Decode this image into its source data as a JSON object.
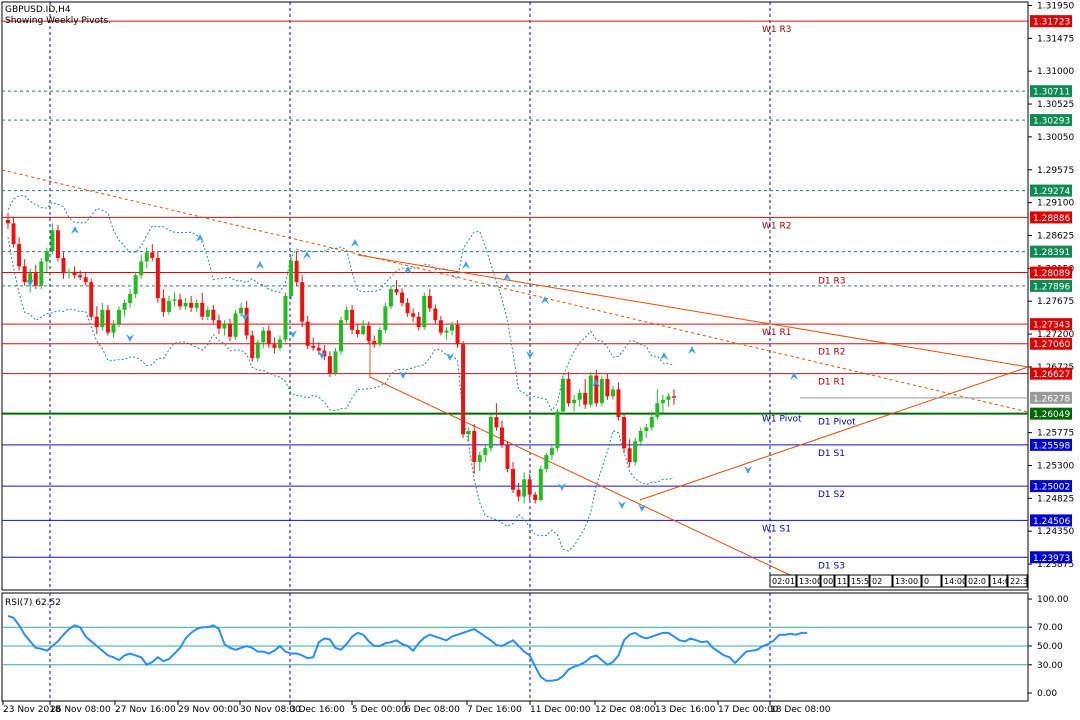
{
  "window": {
    "symbol_title": "GBPUSD.ID,H4",
    "subtitle": "Showing Weekly Pivots."
  },
  "colors": {
    "bull": "#22bb22",
    "bear": "#ee1111",
    "rsi": "#2a8ef0",
    "pivot_red": "#d01010",
    "pivot_blue": "#1010c0",
    "pivot_green": "#006600",
    "envelope": "#2a8a8a",
    "trend": "#e05010",
    "grid": "#0000dd",
    "fractal": "#3aa0e8"
  },
  "price_axis": {
    "ticks": [
      "1.31950",
      "1.31475",
      "1.31000",
      "1.30525",
      "1.30050",
      "1.29575",
      "1.29100",
      "1.28625",
      "1.28150",
      "1.27675",
      "1.27200",
      "1.26725",
      "1.25775",
      "1.25300",
      "1.24825",
      "1.24350",
      "1.23875"
    ],
    "current_price": "1.26278"
  },
  "levels": [
    {
      "price": 1.31723,
      "label": "1.31723",
      "name": "W1 R3",
      "style": "red-solid",
      "tag": "red"
    },
    {
      "price": 1.30711,
      "label": "1.30711",
      "name": "",
      "style": "teal-dash",
      "tag": "green"
    },
    {
      "price": 1.30293,
      "label": "1.30293",
      "name": "",
      "style": "teal-dash",
      "tag": "green"
    },
    {
      "price": 1.29274,
      "label": "1.29274",
      "name": "",
      "style": "teal-dash",
      "tag": "green"
    },
    {
      "price": 1.28886,
      "label": "1.28886",
      "name": "W1 R2",
      "style": "red-solid",
      "tag": "red"
    },
    {
      "price": 1.28391,
      "label": "1.28391",
      "name": "",
      "style": "teal-dash",
      "tag": "green"
    },
    {
      "price": 1.28089,
      "label": "1.28089",
      "name": "D1 R3",
      "style": "red-solid",
      "tag": "red"
    },
    {
      "price": 1.27896,
      "label": "1.27896",
      "name": "",
      "style": "teal-dash",
      "tag": "green"
    },
    {
      "price": 1.27343,
      "label": "1.27343",
      "name": "W1 R1",
      "style": "red-solid",
      "tag": "red"
    },
    {
      "price": 1.2706,
      "label": "1.27060",
      "name": "D1 R2",
      "style": "red-solid",
      "tag": "red"
    },
    {
      "price": 1.26627,
      "label": "1.26627",
      "name": "D1 R1",
      "style": "red-solid",
      "tag": "red"
    },
    {
      "price": 1.26049,
      "label": "1.26049",
      "name": "D1 Pivot",
      "style": "green-solid",
      "tag": "darkgreen"
    },
    {
      "price": 1.25598,
      "label": "1.25598",
      "name": "D1 S1",
      "style": "blue-solid",
      "tag": "blue"
    },
    {
      "price": 1.25002,
      "label": "1.25002",
      "name": "D1 S2",
      "style": "blue-solid",
      "tag": "blue"
    },
    {
      "price": 1.24506,
      "label": "1.24506",
      "name": "W1 S1",
      "style": "blue-solid",
      "tag": "blue"
    },
    {
      "price": 1.23973,
      "label": "1.23973",
      "name": "D1 S3",
      "style": "blue-solid",
      "tag": "blue"
    }
  ],
  "w1_pivot_label": "W1 Pivot",
  "time_axis": [
    "23 Nov 2018",
    "26 Nov 08:00",
    "27 Nov 16:00",
    "29 Nov 00:00",
    "30 Nov 08:00",
    "3 Dec 16:00",
    "5 Dec 00:00",
    "6 Dec 08:00",
    "7 Dec 16:00",
    "11 Dec 00:00",
    "12 Dec 08:00",
    "13 Dec 16:00",
    "17 Dec 00:00",
    "18 Dec 08:00"
  ],
  "time_boxes": [
    "02:01",
    "13:00",
    "00",
    "11",
    "15:5",
    "02",
    "13:00",
    "0",
    "14:00",
    "02:0",
    "14:0",
    "22:3"
  ],
  "rsi": {
    "label": "RSI(7) 62.52",
    "ticks": [
      "100.00",
      "70.00",
      "50.00",
      "30.00",
      "0.00"
    ],
    "values": [
      82,
      80,
      72,
      62,
      55,
      48,
      47,
      45,
      50,
      55,
      62,
      68,
      72,
      70,
      60,
      55,
      50,
      45,
      40,
      38,
      35,
      40,
      42,
      40,
      38,
      30,
      33,
      38,
      34,
      36,
      42,
      48,
      58,
      64,
      68,
      70,
      70,
      72,
      68,
      52,
      48,
      46,
      48,
      50,
      48,
      44,
      44,
      42,
      45,
      50,
      44,
      42,
      42,
      40,
      37,
      38,
      54,
      58,
      57,
      48,
      46,
      52,
      60,
      64,
      62,
      55,
      50,
      50,
      53,
      54,
      56,
      52,
      50,
      45,
      53,
      59,
      62,
      60,
      58,
      56,
      60,
      62,
      64,
      66,
      68,
      64,
      60,
      56,
      51,
      50,
      53,
      56,
      50,
      44,
      40,
      28,
      17,
      13,
      13,
      14,
      18,
      25,
      28,
      30,
      33,
      38,
      40,
      35,
      30,
      33,
      40,
      56,
      62,
      64,
      60,
      58,
      60,
      62,
      64,
      64,
      60,
      56,
      55,
      58,
      56,
      54,
      55,
      48,
      44,
      40,
      38,
      32,
      38,
      44,
      45,
      46,
      50,
      52,
      56,
      62,
      62,
      63,
      62,
      64,
      64
    ]
  },
  "candles": [
    [
      1.2885,
      1.2895,
      1.2872,
      1.288
    ],
    [
      1.288,
      1.289,
      1.2845,
      1.285
    ],
    [
      1.285,
      1.286,
      1.2812,
      1.2818
    ],
    [
      1.2818,
      1.2828,
      1.279,
      1.2795
    ],
    [
      1.2795,
      1.2815,
      1.278,
      1.2808
    ],
    [
      1.2808,
      1.282,
      1.2785,
      1.279
    ],
    [
      1.279,
      1.283,
      1.2785,
      1.2825
    ],
    [
      1.2825,
      1.2845,
      1.281,
      1.284
    ],
    [
      1.284,
      1.288,
      1.2835,
      1.287
    ],
    [
      1.287,
      1.2878,
      1.2825,
      1.283
    ],
    [
      1.283,
      1.2838,
      1.28,
      1.2808
    ],
    [
      1.2808,
      1.2815,
      1.28,
      1.281
    ],
    [
      1.281,
      1.2818,
      1.28,
      1.2805
    ],
    [
      1.2805,
      1.2812,
      1.2798,
      1.2802
    ],
    [
      1.2802,
      1.281,
      1.279,
      1.2795
    ],
    [
      1.2795,
      1.28,
      1.274,
      1.2745
    ],
    [
      1.2745,
      1.276,
      1.272,
      1.273
    ],
    [
      1.273,
      1.2765,
      1.2725,
      1.2755
    ],
    [
      1.2755,
      1.2762,
      1.2718,
      1.2722
    ],
    [
      1.2722,
      1.274,
      1.2715,
      1.2735
    ],
    [
      1.2735,
      1.276,
      1.273,
      1.2755
    ],
    [
      1.2755,
      1.277,
      1.2745,
      1.2765
    ],
    [
      1.2765,
      1.2785,
      1.2758,
      1.2778
    ],
    [
      1.2778,
      1.281,
      1.2772,
      1.2805
    ],
    [
      1.2805,
      1.2835,
      1.28,
      1.2825
    ],
    [
      1.2825,
      1.2845,
      1.2815,
      1.2838
    ],
    [
      1.2838,
      1.285,
      1.2825,
      1.283
    ],
    [
      1.283,
      1.284,
      1.2765,
      1.2772
    ],
    [
      1.2772,
      1.2785,
      1.2745,
      1.2752
    ],
    [
      1.2752,
      1.2775,
      1.2748,
      1.2768
    ],
    [
      1.2768,
      1.278,
      1.276,
      1.277
    ],
    [
      1.277,
      1.2778,
      1.2755,
      1.276
    ],
    [
      1.276,
      1.2772,
      1.2755,
      1.2765
    ],
    [
      1.2765,
      1.2775,
      1.2752,
      1.2758
    ],
    [
      1.2758,
      1.277,
      1.2752,
      1.2765
    ],
    [
      1.2765,
      1.278,
      1.274,
      1.2745
    ],
    [
      1.2745,
      1.276,
      1.274,
      1.2755
    ],
    [
      1.2755,
      1.2762,
      1.2735,
      1.274
    ],
    [
      1.274,
      1.2748,
      1.272,
      1.2728
    ],
    [
      1.2728,
      1.274,
      1.2718,
      1.2735
    ],
    [
      1.2735,
      1.2742,
      1.271,
      1.2716
    ],
    [
      1.2716,
      1.2755,
      1.2712,
      1.275
    ],
    [
      1.275,
      1.2765,
      1.2745,
      1.2758
    ],
    [
      1.2758,
      1.2768,
      1.2712,
      1.2718
    ],
    [
      1.2718,
      1.2725,
      1.268,
      1.2685
    ],
    [
      1.2685,
      1.2712,
      1.268,
      1.2708
    ],
    [
      1.2708,
      1.273,
      1.27,
      1.2725
    ],
    [
      1.2725,
      1.2732,
      1.27,
      1.2705
    ],
    [
      1.2705,
      1.2715,
      1.2692,
      1.27
    ],
    [
      1.27,
      1.2718,
      1.2696,
      1.2712
    ],
    [
      1.2712,
      1.278,
      1.2708,
      1.2775
    ],
    [
      1.2775,
      1.2832,
      1.277,
      1.2826
    ],
    [
      1.2826,
      1.284,
      1.279,
      1.2795
    ],
    [
      1.2795,
      1.2805,
      1.273,
      1.2738
    ],
    [
      1.2738,
      1.2746,
      1.2698,
      1.2703
    ],
    [
      1.2703,
      1.2715,
      1.2696,
      1.27
    ],
    [
      1.27,
      1.2708,
      1.269,
      1.2696
    ],
    [
      1.2696,
      1.2704,
      1.2682,
      1.2688
    ],
    [
      1.2688,
      1.2695,
      1.2658,
      1.2663
    ],
    [
      1.2663,
      1.27,
      1.266,
      1.2695
    ],
    [
      1.2695,
      1.2745,
      1.269,
      1.274
    ],
    [
      1.274,
      1.276,
      1.2736,
      1.2755
    ],
    [
      1.2755,
      1.2762,
      1.272,
      1.2726
    ],
    [
      1.2726,
      1.2735,
      1.2715,
      1.272
    ],
    [
      1.272,
      1.274,
      1.2718,
      1.2732
    ],
    [
      1.2732,
      1.2738,
      1.2705,
      1.271
    ],
    [
      1.271,
      1.2718,
      1.27,
      1.2705
    ],
    [
      1.2705,
      1.273,
      1.2702,
      1.2726
    ],
    [
      1.2726,
      1.2765,
      1.2722,
      1.276
    ],
    [
      1.276,
      1.279,
      1.2756,
      1.2785
    ],
    [
      1.2785,
      1.2798,
      1.2776,
      1.278
    ],
    [
      1.278,
      1.2786,
      1.276,
      1.2765
    ],
    [
      1.2765,
      1.2772,
      1.2745,
      1.275
    ],
    [
      1.275,
      1.2757,
      1.2738,
      1.2745
    ],
    [
      1.2745,
      1.2752,
      1.2725,
      1.273
    ],
    [
      1.273,
      1.278,
      1.2726,
      1.2775
    ],
    [
      1.2775,
      1.2785,
      1.2752,
      1.2757
    ],
    [
      1.2757,
      1.2763,
      1.2735,
      1.274
    ],
    [
      1.274,
      1.2746,
      1.2718,
      1.2722
    ],
    [
      1.2722,
      1.273,
      1.2712,
      1.2725
    ],
    [
      1.2725,
      1.2738,
      1.2718,
      1.2733
    ],
    [
      1.2733,
      1.274,
      1.27,
      1.2705
    ],
    [
      1.2705,
      1.271,
      1.257,
      1.2575
    ],
    [
      1.2575,
      1.2585,
      1.2565,
      1.258
    ],
    [
      1.258,
      1.259,
      1.2518,
      1.2535
    ],
    [
      1.2535,
      1.255,
      1.2522,
      1.2545
    ],
    [
      1.2545,
      1.256,
      1.2535,
      1.2555
    ],
    [
      1.2555,
      1.2605,
      1.255,
      1.26
    ],
    [
      1.26,
      1.262,
      1.258,
      1.2585
    ],
    [
      1.2585,
      1.2595,
      1.2555,
      1.256
    ],
    [
      1.256,
      1.2565,
      1.252,
      1.2525
    ],
    [
      1.2525,
      1.2535,
      1.249,
      1.2495
    ],
    [
      1.2495,
      1.2505,
      1.2478,
      1.2485
    ],
    [
      1.2485,
      1.252,
      1.2475,
      1.251
    ],
    [
      1.251,
      1.2518,
      1.248,
      1.2488
    ],
    [
      1.2488,
      1.2492,
      1.2475,
      1.248
    ],
    [
      1.248,
      1.253,
      1.2478,
      1.2525
    ],
    [
      1.2525,
      1.2548,
      1.252,
      1.2545
    ],
    [
      1.2545,
      1.256,
      1.2538,
      1.2555
    ],
    [
      1.2555,
      1.2612,
      1.255,
      1.2608
    ],
    [
      1.2608,
      1.266,
      1.2604,
      1.2655
    ],
    [
      1.2655,
      1.2665,
      1.2615,
      1.262
    ],
    [
      1.262,
      1.2632,
      1.2608,
      1.2625
    ],
    [
      1.2625,
      1.264,
      1.2615,
      1.2635
    ],
    [
      1.2635,
      1.2655,
      1.2612,
      1.2618
    ],
    [
      1.2618,
      1.2665,
      1.2614,
      1.266
    ],
    [
      1.266,
      1.2668,
      1.2615,
      1.262
    ],
    [
      1.262,
      1.266,
      1.2615,
      1.2655
    ],
    [
      1.2655,
      1.2663,
      1.2625,
      1.263
    ],
    [
      1.263,
      1.2645,
      1.2625,
      1.264
    ],
    [
      1.264,
      1.265,
      1.2595,
      1.26
    ],
    [
      1.26,
      1.2605,
      1.2548,
      1.2555
    ],
    [
      1.2555,
      1.2568,
      1.2528,
      1.2535
    ],
    [
      1.2535,
      1.257,
      1.253,
      1.2565
    ],
    [
      1.2565,
      1.2585,
      1.2558,
      1.258
    ],
    [
      1.258,
      1.259,
      1.257,
      1.2585
    ],
    [
      1.2585,
      1.2608,
      1.258,
      1.26
    ],
    [
      1.26,
      1.264,
      1.2596,
      1.262
    ],
    [
      1.262,
      1.2632,
      1.2605,
      1.2625
    ],
    [
      1.2625,
      1.2635,
      1.2615,
      1.263
    ],
    [
      1.263,
      1.264,
      1.2618,
      1.2628
    ]
  ]
}
